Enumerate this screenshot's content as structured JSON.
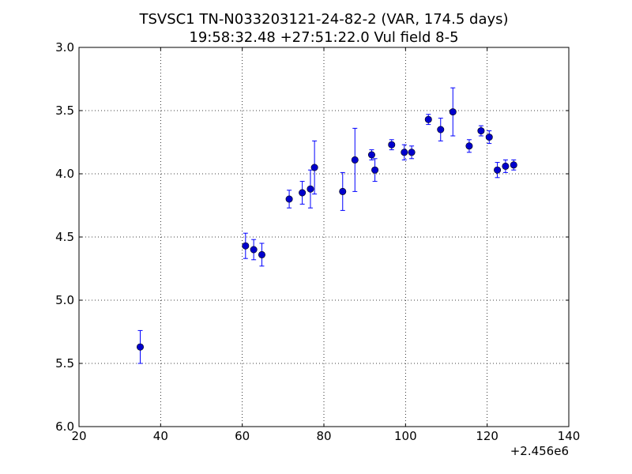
{
  "chart_data": {
    "type": "scatter",
    "title_line1": "TSVSC1 TN-N033203121-24-82-2 (VAR, 174.5 days)",
    "title_line2": "19:58:32.48 +27:51:22.0 Vul field 8-5",
    "xlabel": "",
    "ylabel": "",
    "x_offset_label": "+2.456e6",
    "xlim": [
      20,
      140
    ],
    "ylim": [
      6.0,
      3.0
    ],
    "y_inverted": true,
    "grid": true,
    "x_ticks": [
      20,
      40,
      60,
      80,
      100,
      120,
      140
    ],
    "x_tick_labels": [
      "20",
      "40",
      "60",
      "80",
      "100",
      "120",
      "140"
    ],
    "y_ticks": [
      3.0,
      3.5,
      4.0,
      4.5,
      5.0,
      5.5,
      6.0
    ],
    "y_tick_labels": [
      "3.0",
      "3.5",
      "4.0",
      "4.5",
      "5.0",
      "5.5",
      "6.0"
    ],
    "marker_color": "#0000cc",
    "errorbar_color": "#0000ff",
    "points": [
      {
        "x": 35.0,
        "y": 5.37,
        "err": 0.13
      },
      {
        "x": 60.8,
        "y": 4.57,
        "err": 0.1
      },
      {
        "x": 62.8,
        "y": 4.6,
        "err": 0.08
      },
      {
        "x": 64.8,
        "y": 4.64,
        "err": 0.09
      },
      {
        "x": 71.5,
        "y": 4.2,
        "err": 0.07
      },
      {
        "x": 74.7,
        "y": 4.15,
        "err": 0.09
      },
      {
        "x": 76.7,
        "y": 4.12,
        "err": 0.15
      },
      {
        "x": 77.7,
        "y": 3.95,
        "err": 0.21
      },
      {
        "x": 84.6,
        "y": 4.14,
        "err": 0.15
      },
      {
        "x": 87.6,
        "y": 3.89,
        "err": 0.25
      },
      {
        "x": 91.7,
        "y": 3.85,
        "err": 0.04
      },
      {
        "x": 92.5,
        "y": 3.97,
        "err": 0.09
      },
      {
        "x": 96.6,
        "y": 3.77,
        "err": 0.04
      },
      {
        "x": 99.7,
        "y": 3.83,
        "err": 0.06
      },
      {
        "x": 101.5,
        "y": 3.83,
        "err": 0.05
      },
      {
        "x": 105.6,
        "y": 3.57,
        "err": 0.04
      },
      {
        "x": 108.6,
        "y": 3.65,
        "err": 0.09
      },
      {
        "x": 111.6,
        "y": 3.51,
        "err": 0.19
      },
      {
        "x": 115.6,
        "y": 3.78,
        "err": 0.05
      },
      {
        "x": 118.5,
        "y": 3.66,
        "err": 0.04
      },
      {
        "x": 120.5,
        "y": 3.71,
        "err": 0.05
      },
      {
        "x": 122.5,
        "y": 3.97,
        "err": 0.06
      },
      {
        "x": 124.5,
        "y": 3.94,
        "err": 0.05
      },
      {
        "x": 126.5,
        "y": 3.93,
        "err": 0.04
      }
    ]
  }
}
